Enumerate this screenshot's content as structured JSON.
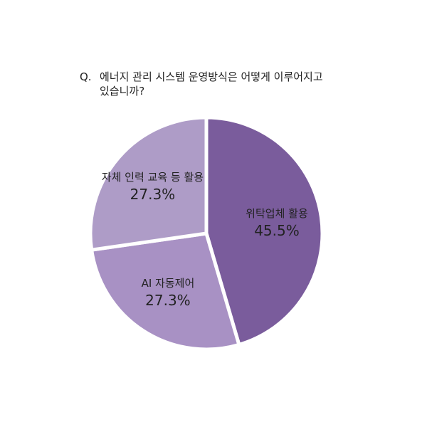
{
  "chart_data": {
    "type": "pie",
    "title_prefix": "Q.",
    "title_lines": [
      "에너지 관리 시스템 운영방식은 어떻게 이루어지고",
      "있습니까?"
    ],
    "categories": [
      "위탁업체 활용",
      "AI 자동제어",
      "자체 인력 교육 등 활용"
    ],
    "values": [
      45.5,
      27.3,
      27.3
    ],
    "value_labels": [
      "45.5%",
      "27.3%",
      "27.3%"
    ],
    "colors": [
      "#7a5c9c",
      "#a891c4",
      "#ae9cc7"
    ]
  }
}
